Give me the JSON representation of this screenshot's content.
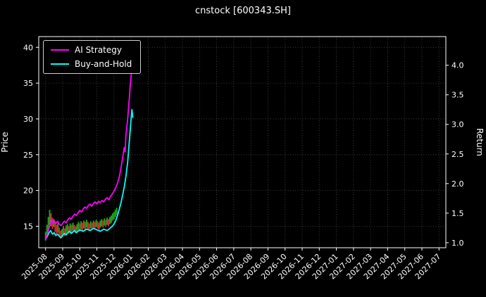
{
  "title": "cnstock [600343.SH]",
  "legend": {
    "items": [
      {
        "label": "AI Strategy",
        "color": "#ff00ff"
      },
      {
        "label": "Buy-and-Hold",
        "color": "#00ffff"
      }
    ]
  },
  "axes": {
    "y_left": {
      "label": "Price"
    },
    "y_right": {
      "label": "Return"
    }
  },
  "chart_data": {
    "type": "line",
    "title": "cnstock [600343.SH]",
    "xlabel": "",
    "ylabel_left": "Price",
    "ylabel_right": "Return",
    "background": "#000000",
    "grid_color": "#4d4d4d",
    "frame_color": "#ffffff",
    "text_color": "#ffffff",
    "x_tick_labels": [
      "2025-08",
      "2025-09",
      "2025-10",
      "2025-11",
      "2025-12",
      "2026-01",
      "2026-02",
      "2026-03",
      "2026-04",
      "2026-05",
      "2026-06",
      "2026-07",
      "2026-08",
      "2026-09",
      "2026-10",
      "2026-11",
      "2026-12",
      "2027-01",
      "2027-02",
      "2027-03",
      "2027-04",
      "2027-05",
      "2027-06",
      "2027-07"
    ],
    "ylim_left": [
      12,
      41.5
    ],
    "yticks_left": [
      15,
      20,
      25,
      30,
      35,
      40
    ],
    "yticks_right": [
      1.0,
      1.5,
      2.0,
      2.5,
      3.0,
      3.5,
      4.0
    ],
    "right_axis_alignment": {
      "return_values": [
        1.0,
        4.0
      ],
      "price_values": [
        12.7,
        37.5
      ]
    },
    "legend_position": "upper left",
    "grid": true,
    "series": [
      {
        "name": "Buy-and-Hold",
        "color": "#00ffff",
        "width": 1.8,
        "x": [
          0,
          0.1,
          0.2,
          0.3,
          0.4,
          0.5,
          0.6,
          0.7,
          0.8,
          0.9,
          1.0,
          1.1,
          1.2,
          1.3,
          1.4,
          1.5,
          1.6,
          1.7,
          1.8,
          1.9,
          2.0,
          2.2,
          2.4,
          2.6,
          2.8,
          3.0,
          3.2,
          3.4,
          3.6,
          3.8,
          3.9,
          4.0,
          4.1,
          4.2,
          4.3,
          4.4,
          4.5,
          4.6,
          4.7,
          4.8,
          4.85,
          4.9,
          4.95,
          5.0,
          5.05,
          5.1
        ],
        "y": [
          13.2,
          13.6,
          14.1,
          14.4,
          13.9,
          14.1,
          13.7,
          13.9,
          13.6,
          13.4,
          13.7,
          14.0,
          13.8,
          14.1,
          14.3,
          14.0,
          14.2,
          14.4,
          14.1,
          14.3,
          14.5,
          14.3,
          14.6,
          14.4,
          14.7,
          14.5,
          14.3,
          14.6,
          14.4,
          14.8,
          15.0,
          15.3,
          15.8,
          16.5,
          17.3,
          18.2,
          19.3,
          20.5,
          22.0,
          24.0,
          25.5,
          27.0,
          28.5,
          30.0,
          31.3,
          30.2
        ]
      },
      {
        "name": "AI Strategy",
        "color": "#ff00ff",
        "width": 1.8,
        "x": [
          0,
          0.1,
          0.2,
          0.3,
          0.35,
          0.4,
          0.5,
          0.6,
          0.7,
          0.8,
          0.9,
          1.0,
          1.1,
          1.2,
          1.3,
          1.4,
          1.5,
          1.6,
          1.7,
          1.8,
          1.9,
          2.0,
          2.1,
          2.2,
          2.3,
          2.4,
          2.5,
          2.6,
          2.7,
          2.8,
          2.9,
          3.0,
          3.1,
          3.2,
          3.3,
          3.4,
          3.5,
          3.6,
          3.7,
          3.8,
          3.9,
          4.0,
          4.1,
          4.2,
          4.3,
          4.4,
          4.5,
          4.6,
          4.65,
          4.7,
          4.8,
          4.85,
          4.9,
          4.95,
          5.0,
          5.05
        ],
        "y": [
          13.2,
          13.9,
          14.8,
          15.4,
          15.9,
          15.5,
          15.8,
          15.4,
          15.7,
          15.3,
          15.1,
          15.4,
          15.7,
          15.5,
          15.9,
          16.2,
          16.0,
          16.4,
          16.7,
          16.5,
          16.9,
          17.2,
          17.0,
          17.4,
          17.7,
          17.5,
          17.9,
          18.1,
          17.8,
          18.2,
          18.4,
          18.1,
          18.5,
          18.3,
          18.6,
          18.4,
          18.8,
          19.0,
          18.7,
          19.2,
          19.5,
          19.9,
          20.4,
          21.0,
          21.8,
          23.0,
          24.5,
          26.0,
          25.4,
          27.8,
          30.0,
          31.5,
          33.0,
          34.8,
          36.0,
          37.2
        ]
      }
    ],
    "candle_colors": {
      "up": "#1fa01f",
      "down": "#cc2a2a"
    },
    "candles": [
      [
        0.0,
        13.0,
        14.2,
        "u"
      ],
      [
        0.08,
        13.8,
        15.2,
        "u"
      ],
      [
        0.16,
        14.5,
        16.3,
        "u"
      ],
      [
        0.24,
        15.2,
        17.3,
        "u"
      ],
      [
        0.32,
        15.0,
        16.8,
        "d"
      ],
      [
        0.4,
        14.6,
        16.2,
        "d"
      ],
      [
        0.48,
        14.9,
        16.0,
        "u"
      ],
      [
        0.56,
        14.2,
        15.6,
        "d"
      ],
      [
        0.64,
        13.9,
        15.2,
        "d"
      ],
      [
        0.72,
        14.1,
        15.4,
        "u"
      ],
      [
        0.8,
        13.6,
        14.8,
        "d"
      ],
      [
        0.88,
        13.3,
        14.4,
        "d"
      ],
      [
        0.96,
        13.5,
        14.6,
        "u"
      ],
      [
        1.04,
        13.8,
        15.0,
        "u"
      ],
      [
        1.12,
        13.6,
        14.7,
        "d"
      ],
      [
        1.2,
        13.9,
        15.1,
        "u"
      ],
      [
        1.28,
        14.2,
        15.3,
        "u"
      ],
      [
        1.36,
        14.0,
        15.0,
        "d"
      ],
      [
        1.44,
        14.3,
        15.4,
        "u"
      ],
      [
        1.52,
        14.1,
        15.2,
        "d"
      ],
      [
        1.6,
        14.4,
        15.5,
        "u"
      ],
      [
        1.68,
        14.2,
        15.2,
        "d"
      ],
      [
        1.76,
        14.0,
        15.0,
        "d"
      ],
      [
        1.84,
        14.3,
        15.3,
        "u"
      ],
      [
        1.92,
        14.5,
        15.6,
        "u"
      ],
      [
        2.0,
        14.3,
        15.4,
        "d"
      ],
      [
        2.08,
        14.6,
        15.7,
        "u"
      ],
      [
        2.16,
        14.4,
        15.5,
        "d"
      ],
      [
        2.24,
        14.7,
        15.8,
        "u"
      ],
      [
        2.32,
        14.5,
        15.6,
        "d"
      ],
      [
        2.4,
        14.8,
        15.9,
        "u"
      ],
      [
        2.48,
        14.6,
        15.6,
        "d"
      ],
      [
        2.56,
        14.4,
        15.4,
        "d"
      ],
      [
        2.64,
        14.7,
        15.7,
        "u"
      ],
      [
        2.72,
        14.5,
        15.5,
        "d"
      ],
      [
        2.8,
        14.8,
        15.8,
        "u"
      ],
      [
        2.88,
        14.6,
        15.6,
        "d"
      ],
      [
        2.96,
        14.9,
        15.9,
        "u"
      ],
      [
        3.04,
        14.7,
        15.7,
        "d"
      ],
      [
        3.12,
        14.5,
        15.5,
        "d"
      ],
      [
        3.2,
        14.8,
        15.8,
        "u"
      ],
      [
        3.28,
        15.0,
        16.0,
        "u"
      ],
      [
        3.36,
        14.8,
        15.8,
        "d"
      ],
      [
        3.44,
        15.1,
        16.1,
        "u"
      ],
      [
        3.52,
        14.9,
        15.9,
        "d"
      ],
      [
        3.6,
        15.2,
        16.2,
        "u"
      ],
      [
        3.68,
        15.0,
        16.0,
        "d"
      ],
      [
        3.76,
        15.3,
        16.3,
        "u"
      ],
      [
        3.84,
        15.5,
        16.5,
        "u"
      ],
      [
        3.92,
        15.8,
        16.8,
        "u"
      ],
      [
        4.0,
        16.0,
        17.0,
        "u"
      ],
      [
        4.08,
        16.3,
        17.3,
        "u"
      ],
      [
        4.16,
        16.6,
        17.6,
        "u"
      ]
    ]
  }
}
